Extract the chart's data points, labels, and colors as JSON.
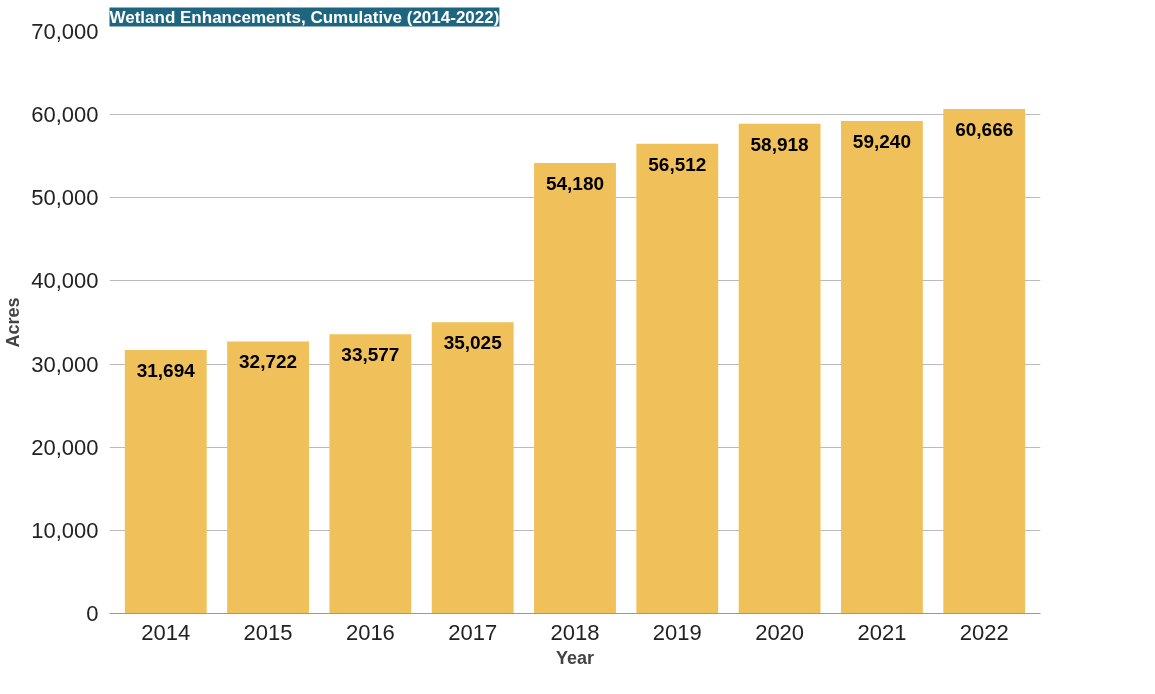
{
  "chart_data": {
    "type": "bar",
    "title": "Wetland Enhancements, Cumulative (2014-2022)",
    "xlabel": "Year",
    "ylabel": "Acres",
    "categories": [
      "2014",
      "2015",
      "2016",
      "2017",
      "2018",
      "2019",
      "2020",
      "2021",
      "2022"
    ],
    "values": [
      31694,
      32722,
      33577,
      35025,
      54180,
      56512,
      58918,
      59240,
      60666
    ],
    "value_labels": [
      "31,694",
      "32,722",
      "33,577",
      "35,025",
      "54,180",
      "56,512",
      "58,918",
      "59,240",
      "60,666"
    ],
    "color": "#f0c05a",
    "ylim": [
      0,
      70000
    ],
    "yticks": [
      {
        "value": 0,
        "label": "0"
      },
      {
        "value": 10000,
        "label": "10,000"
      },
      {
        "value": 20000,
        "label": "20,000"
      },
      {
        "value": 30000,
        "label": "30,000"
      },
      {
        "value": 40000,
        "label": "40,000"
      },
      {
        "value": 50000,
        "label": "50,000"
      },
      {
        "value": 60000,
        "label": "60,000"
      },
      {
        "value": 70000,
        "label": "70,000"
      }
    ],
    "grid": "y"
  }
}
